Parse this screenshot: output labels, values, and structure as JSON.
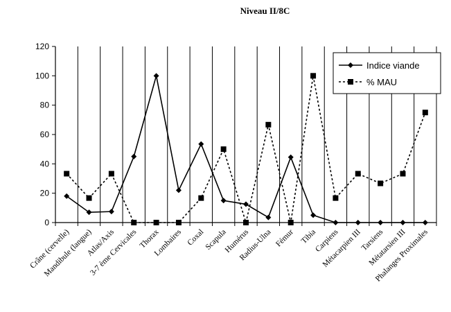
{
  "chart_data": {
    "type": "line",
    "title": "Niveau II/8C",
    "xlabel": "",
    "ylabel": "",
    "ylim": [
      0,
      120
    ],
    "yticks": [
      0,
      20,
      40,
      60,
      80,
      100,
      120
    ],
    "grid": "vertical",
    "legend_position": "top-right",
    "categories": [
      "Crâne (cervelle)",
      "Mandibule (langue)",
      "Atlas/Axis",
      "3-7 ème Cervicales",
      "Thorax",
      "Lombaires",
      "Coxal",
      "Scapula",
      "Humérus",
      "Radius-Ulna",
      "Fémur",
      "Tibia",
      "Carpiens",
      "Métacarpien III",
      "Tarsiens",
      "Métatarsien III",
      "Phalanges Proximales"
    ],
    "series": [
      {
        "name": "Indice viande",
        "style": "solid",
        "marker": "diamond",
        "color": "#000000",
        "values": [
          18,
          7,
          7.5,
          45,
          100,
          22,
          53.5,
          15,
          12.5,
          3.5,
          44.5,
          5,
          0,
          0,
          0,
          0,
          0
        ]
      },
      {
        "name": "% MAU",
        "style": "dotted",
        "marker": "square",
        "color": "#000000",
        "values": [
          33.3,
          16.7,
          33.3,
          0,
          0,
          0,
          16.7,
          50,
          0,
          66.7,
          0,
          100,
          16.7,
          33.3,
          26.7,
          33.3,
          75
        ]
      }
    ]
  }
}
